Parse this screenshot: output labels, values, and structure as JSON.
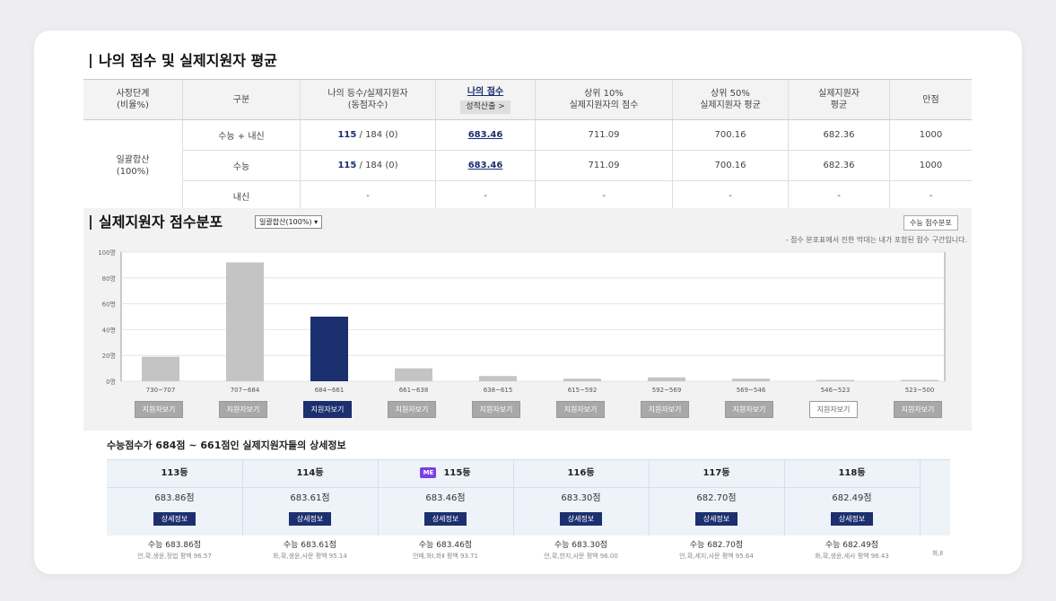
{
  "score_section": {
    "title": "나의 점수 및 실제지원자 평균",
    "headers": [
      "사정단계\n(비율%)",
      "구분",
      "나의 등수/실제지원자\n(동점자수)",
      "나의 점수",
      "상위 10%\n실제지원자의 점수",
      "상위 50%\n실제지원자 평균",
      "실제지원자\n평균",
      "만점"
    ],
    "score_calc_button": "성적산출 >",
    "stage": "일괄합산\n(100%)",
    "rows": [
      {
        "category": "수능 + 내신",
        "rank": "115",
        "rank_rest": " / 184 (0)",
        "my_score": "683.46",
        "top10": "711.09",
        "top50": "700.16",
        "avg": "682.36",
        "full": "1000"
      },
      {
        "category": "수능",
        "rank": "115",
        "rank_rest": " / 184 (0)",
        "my_score": "683.46",
        "top10": "711.09",
        "top50": "700.16",
        "avg": "682.36",
        "full": "1000"
      },
      {
        "category": "내신",
        "rank": "",
        "rank_rest": "-",
        "my_score": "-",
        "top10": "-",
        "top50": "-",
        "avg": "-",
        "full": "-"
      }
    ]
  },
  "distribution": {
    "title": "실제지원자 점수분포",
    "dropdown": "일괄합산(100%) ▾",
    "right_button": "수능 점수분포",
    "note": "- 점수 분포표에서 진한 막대는 내가 포함된 점수 구간입니다.",
    "view_button_label": "지원자보기",
    "active_index": 2,
    "outline_index": 8
  },
  "chart_data": {
    "type": "bar",
    "categories": [
      "730~707",
      "707~684",
      "684~661",
      "661~638",
      "638~615",
      "615~592",
      "592~569",
      "569~546",
      "546~523",
      "523~500"
    ],
    "values": [
      19,
      92,
      50,
      10,
      4,
      2,
      3,
      2,
      1,
      1
    ],
    "ylim": [
      0,
      100
    ],
    "yticks": [
      "100명",
      "80명",
      "60명",
      "40명",
      "20명",
      "0명"
    ],
    "highlight_index": 2,
    "colors": {
      "normal": "#c4c4c4",
      "highlight": "#1c2f6f"
    },
    "grid": true
  },
  "detail": {
    "title": "수능점수가 684점 ~ 661점인 실제지원자들의 상세정보",
    "me_label": "ME",
    "button_label": "상세정보",
    "columns": [
      {
        "rank": "113등",
        "score": "683.86점",
        "foot1": "수능 683.86점",
        "foot2": "언,확,생윤,정법 평백 96.57"
      },
      {
        "rank": "114등",
        "score": "683.61점",
        "foot1": "수능 683.61점",
        "foot2": "화,확,생윤,사문 평백 95.14"
      },
      {
        "rank": "115등",
        "score": "683.46점",
        "foot1": "수능 683.46점",
        "foot2": "언매,화Ⅰ,화Ⅱ 평백 93.71",
        "me": true
      },
      {
        "rank": "116등",
        "score": "683.30점",
        "foot1": "수능 683.30점",
        "foot2": "언,확,한지,사문 평백 96.00"
      },
      {
        "rank": "117등",
        "score": "682.70점",
        "foot1": "수능 682.70점",
        "foot2": "언,확,세지,사문 평백 95.64"
      },
      {
        "rank": "118등",
        "score": "682.49점",
        "foot1": "수능 682.49점",
        "foot2": "화,확,생윤,세사 평백 96.43"
      }
    ],
    "partial_foot": "화,Ⅱ"
  }
}
